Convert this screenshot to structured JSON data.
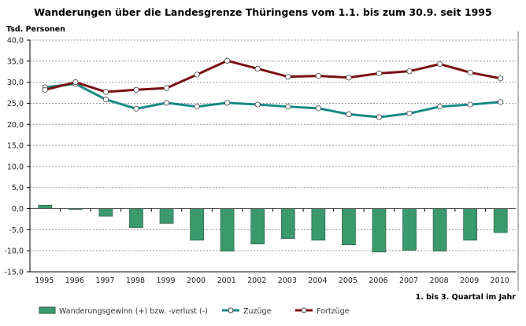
{
  "chart_data": {
    "type": "bar+line",
    "title": "Wanderungen über die Landesgrenze Thüringens vom 1.1. bis zum 30.9. seit 1995",
    "ylabel": "Tsd. Personen",
    "xlabel": "1. bis 3. Quartal im Jahr",
    "ylim": [
      -15,
      40
    ],
    "ytick_step": 5,
    "ytick_labels": [
      "-15,0",
      "-10,0",
      "-5,0",
      "0,0",
      "5,0",
      "10,0",
      "15,0",
      "20,0",
      "25,0",
      "30,0",
      "35,0",
      "40,0"
    ],
    "grid": true,
    "legend_position": "bottom",
    "categories": [
      "1995",
      "1996",
      "1997",
      "1998",
      "1999",
      "2000",
      "2001",
      "2002",
      "2003",
      "2004",
      "2005",
      "2006",
      "2007",
      "2008",
      "2009",
      "2010"
    ],
    "series": [
      {
        "name": "Wanderungsgewinn (+) bzw. -verlust (-)",
        "type": "bar",
        "color": "#3a9a6c",
        "values": [
          0.8,
          -0.2,
          -1.8,
          -4.5,
          -3.5,
          -7.5,
          -10.1,
          -8.4,
          -7.1,
          -7.5,
          -8.6,
          -10.3,
          -9.9,
          -10.1,
          -7.5,
          -5.7
        ]
      },
      {
        "name": "Zuzüge",
        "type": "line",
        "color": "#178a85",
        "values": [
          28.8,
          29.6,
          25.9,
          23.7,
          25.1,
          24.2,
          25.1,
          24.7,
          24.2,
          23.8,
          22.4,
          21.7,
          22.6,
          24.2,
          24.7,
          25.3
        ]
      },
      {
        "name": "Fortzüge",
        "type": "line",
        "color": "#7a0f12",
        "values": [
          28.2,
          30.0,
          27.7,
          28.2,
          28.6,
          31.8,
          35.1,
          33.2,
          31.3,
          31.5,
          31.1,
          32.1,
          32.6,
          34.3,
          32.3,
          30.9
        ]
      }
    ]
  }
}
